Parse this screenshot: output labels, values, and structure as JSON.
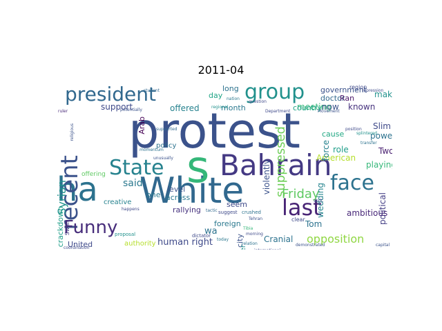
{
  "title": "2011-04",
  "palette": "viridis",
  "words": [
    {
      "text": "protest",
      "color": "#3b528b"
    },
    {
      "text": "White",
      "color": "#31688e"
    },
    {
      "text": "s",
      "color": "#35b779"
    },
    {
      "text": "Bahrain",
      "color": "#443983"
    },
    {
      "text": "ha",
      "color": "#2c728e"
    },
    {
      "text": "group",
      "color": "#21918c"
    },
    {
      "text": "president",
      "color": "#31688e"
    },
    {
      "text": "last",
      "color": "#482475"
    },
    {
      "text": "recent",
      "color": "#3b528b"
    },
    {
      "text": "State",
      "color": "#26828e"
    },
    {
      "text": "face",
      "color": "#2c728e"
    },
    {
      "text": "Funny",
      "color": "#472d7b"
    },
    {
      "text": "Syrian",
      "color": "#21918c"
    },
    {
      "text": "Friday",
      "color": "#5ec962"
    },
    {
      "text": "opposition",
      "color": "#90d743"
    },
    {
      "text": "said",
      "color": "#2a788e"
    },
    {
      "text": "human right",
      "color": "#3e4989"
    },
    {
      "text": "government",
      "color": "#3b528b"
    },
    {
      "text": "suppressed",
      "color": "#6ece58"
    },
    {
      "text": "Arab",
      "color": "#440154"
    },
    {
      "text": "doctor",
      "color": "#31688e"
    },
    {
      "text": "meeting",
      "color": "#35b779"
    },
    {
      "text": "country",
      "color": "#20a486"
    },
    {
      "text": "Ran",
      "color": "#481467"
    },
    {
      "text": "known",
      "color": "#46327e"
    },
    {
      "text": "make",
      "color": "#21918c"
    },
    {
      "text": "support",
      "color": "#3e4989"
    },
    {
      "text": "offered",
      "color": "#26828e"
    },
    {
      "text": "month",
      "color": "#2a788e"
    },
    {
      "text": "long",
      "color": "#2c728e"
    },
    {
      "text": "day",
      "color": "#20a486"
    },
    {
      "text": "now",
      "color": "#3b528b"
    },
    {
      "text": "Slim",
      "color": "#3e4989"
    },
    {
      "text": "power",
      "color": "#2c728e"
    },
    {
      "text": "American",
      "color": "#b5de2b"
    },
    {
      "text": "playing",
      "color": "#35b779"
    },
    {
      "text": "Two",
      "color": "#481f70"
    },
    {
      "text": "political",
      "color": "#433e85"
    },
    {
      "text": "ambitious",
      "color": "#482878"
    },
    {
      "text": "wedding",
      "color": "#25848e"
    },
    {
      "text": "force",
      "color": "#26828e"
    },
    {
      "text": "violently",
      "color": "#3b528b"
    },
    {
      "text": "role",
      "color": "#1f9e89"
    },
    {
      "text": "cause",
      "color": "#22a884"
    },
    {
      "text": "crackdown",
      "color": "#1f9e89"
    },
    {
      "text": "across",
      "color": "#2a788e"
    },
    {
      "text": "level",
      "color": "#3b528b"
    },
    {
      "text": "one",
      "color": "#2a788e"
    },
    {
      "text": "policy",
      "color": "#2c728e"
    },
    {
      "text": "rallying",
      "color": "#46327e"
    },
    {
      "text": "creative",
      "color": "#26828e"
    },
    {
      "text": "foreign",
      "color": "#2a788e"
    },
    {
      "text": "seem",
      "color": "#3e4989"
    },
    {
      "text": "Tom",
      "color": "#2c728e"
    },
    {
      "text": "Cranial",
      "color": "#2c728e"
    },
    {
      "text": "city",
      "color": "#3b528b"
    },
    {
      "text": "Later",
      "color": "#21918c"
    },
    {
      "text": "wa",
      "color": "#2c728e"
    },
    {
      "text": "United",
      "color": "#3e4989"
    },
    {
      "text": "authority",
      "color": "#b5de2b"
    },
    {
      "text": "offering",
      "color": "#5ec962"
    },
    {
      "text": "supported",
      "color": "#31688e"
    },
    {
      "text": "region",
      "color": "#3e4989"
    },
    {
      "text": "regional",
      "color": "#21918c"
    },
    {
      "text": "nation",
      "color": "#2a788e"
    },
    {
      "text": "question",
      "color": "#3e4989"
    },
    {
      "text": "potentially",
      "color": "#3b528b"
    },
    {
      "text": "student",
      "color": "#31688e"
    },
    {
      "text": "clear",
      "color": "#3e4989"
    },
    {
      "text": "shift",
      "color": "#3b528b"
    },
    {
      "text": "Tibia",
      "color": "#35b779"
    },
    {
      "text": "morning",
      "color": "#3e4989"
    },
    {
      "text": "Tehran",
      "color": "#3b528b"
    },
    {
      "text": "crushed",
      "color": "#2c728e"
    },
    {
      "text": "suggest",
      "color": "#3e4989"
    },
    {
      "text": "proposal",
      "color": "#21918c"
    },
    {
      "text": "dictator",
      "color": "#3e4989"
    },
    {
      "text": "today",
      "color": "#2a788e"
    },
    {
      "text": "Swiss",
      "color": "#443983"
    },
    {
      "text": "ruler",
      "color": "#482878"
    },
    {
      "text": "religious",
      "color": "#3b528b"
    },
    {
      "text": "coordination",
      "color": "#3e4989"
    },
    {
      "text": "relation",
      "color": "#2c728e"
    },
    {
      "text": "demonstrated",
      "color": "#3b528b"
    },
    {
      "text": "position",
      "color": "#3e4989"
    },
    {
      "text": "transfer",
      "color": "#2c728e"
    },
    {
      "text": "splintered",
      "color": "#21918c"
    },
    {
      "text": "Department",
      "color": "#3e4989"
    },
    {
      "text": "Movement",
      "color": "#3b528b"
    },
    {
      "text": "repression",
      "color": "#3e4989"
    },
    {
      "text": "momentum",
      "color": "#2c728e"
    },
    {
      "text": "unusually",
      "color": "#3b528b"
    },
    {
      "text": "happens",
      "color": "#3e4989"
    },
    {
      "text": "tactic",
      "color": "#31688e"
    },
    {
      "text": "capital",
      "color": "#3b528b"
    },
    {
      "text": "international",
      "color": "#3e4989"
    }
  ]
}
